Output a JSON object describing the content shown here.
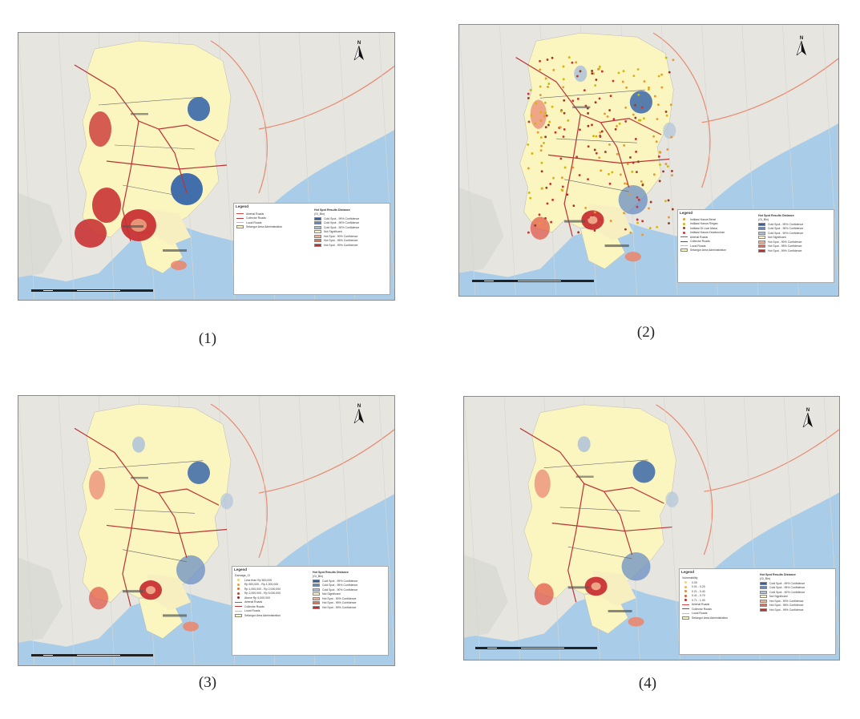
{
  "panels": [
    {
      "id": "p1",
      "caption": "(1)",
      "legend": {
        "title": "Legend",
        "left_items": [
          {
            "kind": "line",
            "color": "#d44",
            "label": "Arterial Roads"
          },
          {
            "kind": "line",
            "color": "#b33",
            "label": "Collector Roads"
          },
          {
            "kind": "line",
            "color": "#bbb",
            "label": "Local Roads"
          },
          {
            "kind": "fill",
            "color": "#fbf5c0",
            "label": "Selangor Area Administration"
          }
        ],
        "right_head": "Hot Spot Results Distance",
        "right_sub": "(Gi_Bin)",
        "right_items": [
          {
            "color": "#2e5fa8",
            "label": "Cold Spot - 99% Confidence"
          },
          {
            "color": "#5f89c2",
            "label": "Cold Spot - 95% Confidence"
          },
          {
            "color": "#a9bfdb",
            "label": "Cold Spot - 90% Confidence"
          },
          {
            "color": "#fbf5c0",
            "label": "Not Significant"
          },
          {
            "color": "#f3b08a",
            "label": "Hot Spot - 90% Confidence"
          },
          {
            "color": "#e4704c",
            "label": "Hot Spot - 95% Confidence"
          },
          {
            "color": "#c7282c",
            "label": "Hot Spot - 99% Confidence"
          }
        ]
      }
    },
    {
      "id": "p2",
      "caption": "(2)",
      "legend": {
        "title": "Legend",
        "left_items": [
          {
            "kind": "point",
            "color": "#e89a2c",
            "label": "Indikasi Kasus Berat"
          },
          {
            "kind": "point",
            "color": "#d4b800",
            "label": "Indikasi Kasus Ringan"
          },
          {
            "kind": "point",
            "color": "#9c3a22",
            "label": "Indikasi Di Luar Masa"
          },
          {
            "kind": "point",
            "color": "#c33",
            "label": "Indikasi Kasus Keseluruhan"
          },
          {
            "kind": "line",
            "color": "#d44",
            "label": "Arterial Roads"
          },
          {
            "kind": "line",
            "color": "#b33",
            "label": "Collector Roads"
          },
          {
            "kind": "line",
            "color": "#bbb",
            "label": "Local Roads"
          },
          {
            "kind": "fill",
            "color": "#fbf5c0",
            "label": "Selangor Area Administration"
          }
        ],
        "right_head": "Hot Spot Results Distance",
        "right_sub": "(Gi_Bin)",
        "right_items": [
          {
            "color": "#2e5fa8",
            "label": "Cold Spot - 99% Confidence"
          },
          {
            "color": "#5f89c2",
            "label": "Cold Spot - 95% Confidence"
          },
          {
            "color": "#a9bfdb",
            "label": "Cold Spot - 90% Confidence"
          },
          {
            "color": "#fbf5c0",
            "label": "Not Significant"
          },
          {
            "color": "#f3b08a",
            "label": "Hot Spot - 90% Confidence"
          },
          {
            "color": "#e4704c",
            "label": "Hot Spot - 95% Confidence"
          },
          {
            "color": "#c7282c",
            "label": "Hot Spot - 99% Confidence"
          }
        ]
      }
    },
    {
      "id": "p3",
      "caption": "(3)",
      "legend": {
        "title": "Legend",
        "left_head": "Damage_Cl",
        "left_items": [
          {
            "kind": "point",
            "color": "#f0d070",
            "label": "Less than Rp 500,000"
          },
          {
            "kind": "point",
            "color": "#e9a040",
            "label": "Rp 500,000 - Rp 1,000,000"
          },
          {
            "kind": "point",
            "color": "#e07030",
            "label": "Rp 1,000,000 - Rp 2,000,000"
          },
          {
            "kind": "point",
            "color": "#c84028",
            "label": "Rp 2,000,000 - Rp 5,000,000"
          },
          {
            "kind": "point",
            "color": "#a02020",
            "label": "Above Rp 5,000,000"
          },
          {
            "kind": "line",
            "color": "#d44",
            "label": "Arterial Roads"
          },
          {
            "kind": "line",
            "color": "#b33",
            "label": "Collector Roads"
          },
          {
            "kind": "line",
            "color": "#bbb",
            "label": "Local Roads"
          },
          {
            "kind": "fill",
            "color": "#fbf5c0",
            "label": "Selangor Area Administration"
          }
        ],
        "right_head": "Hot Spot Results Distance",
        "right_sub": "(Gi_Bin)",
        "right_items": [
          {
            "color": "#2e5fa8",
            "label": "Cold Spot - 99% Confidence"
          },
          {
            "color": "#5f89c2",
            "label": "Cold Spot - 95% Confidence"
          },
          {
            "color": "#a9bfdb",
            "label": "Cold Spot - 90% Confidence"
          },
          {
            "color": "#fbf5c0",
            "label": "Not Significant"
          },
          {
            "color": "#f3b08a",
            "label": "Hot Spot - 90% Confidence"
          },
          {
            "color": "#e4704c",
            "label": "Hot Spot - 95% Confidence"
          },
          {
            "color": "#c7282c",
            "label": "Hot Spot - 99% Confidence"
          }
        ]
      }
    },
    {
      "id": "p4",
      "caption": "(4)",
      "legend": {
        "title": "Legend",
        "left_head": "Vulnerability",
        "left_items": [
          {
            "kind": "point",
            "color": "#f3d27a",
            "label": "0.00"
          },
          {
            "kind": "point",
            "color": "#efb055",
            "label": "0.01 - 0.20"
          },
          {
            "kind": "point",
            "color": "#e88a3a",
            "label": "0.21 - 0.40"
          },
          {
            "kind": "point",
            "color": "#d85a2a",
            "label": "0.41 - 0.70"
          },
          {
            "kind": "point",
            "color": "#b82a22",
            "label": "0.71 - 1.00"
          },
          {
            "kind": "line",
            "color": "#d44",
            "label": "Arterial Roads"
          },
          {
            "kind": "line",
            "color": "#b33",
            "label": "Collector Roads"
          },
          {
            "kind": "line",
            "color": "#bbb",
            "label": "Local Roads"
          },
          {
            "kind": "fill",
            "color": "#fbf5c0",
            "label": "Selangor Area Administration"
          }
        ],
        "right_head": "Hot Spot Results Distance",
        "right_sub": "(Gi_Bin)",
        "right_items": [
          {
            "color": "#2e5fa8",
            "label": "Cold Spot - 99% Confidence"
          },
          {
            "color": "#5f89c2",
            "label": "Cold Spot - 95% Confidence"
          },
          {
            "color": "#a9bfdb",
            "label": "Cold Spot - 90% Confidence"
          },
          {
            "color": "#fbf5c0",
            "label": "Not Significant"
          },
          {
            "color": "#f3b08a",
            "label": "Hot Spot - 90% Confidence"
          },
          {
            "color": "#e4704c",
            "label": "Hot Spot - 95% Confidence"
          },
          {
            "color": "#c7282c",
            "label": "Hot Spot - 99% Confidence"
          }
        ]
      }
    }
  ],
  "north_label": "N",
  "colors": {
    "sea": "#a9cde8",
    "land": "#e6e5df",
    "study_area": "#fbf5c0",
    "hot": "#c7282c",
    "cold": "#2e5fa8"
  }
}
